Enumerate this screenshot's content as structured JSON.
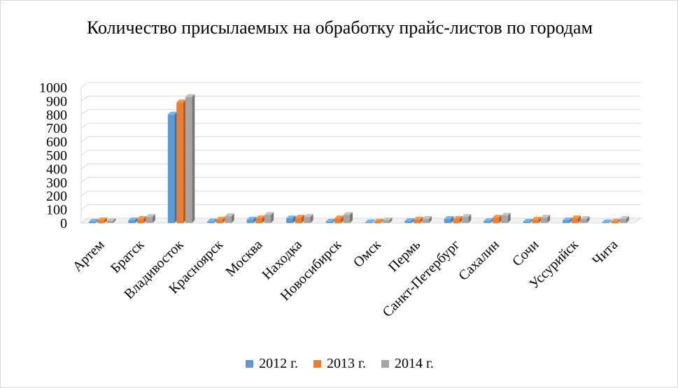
{
  "chart_data": {
    "type": "bar",
    "title": "Количество присылаемых на обработку прайс-листов по городам",
    "xlabel": "",
    "ylabel": "",
    "ylim": [
      0,
      1000
    ],
    "yticks": [
      0,
      100,
      200,
      300,
      400,
      500,
      600,
      700,
      800,
      900,
      1000
    ],
    "grid": true,
    "legend_position": "bottom",
    "categories": [
      "Артем",
      "Братск",
      "Владивосток",
      "Красноярск",
      "Москва",
      "Находка",
      "Новосибирск",
      "Омск",
      "Пермь",
      "Санкт-Петербург",
      "Сахалин",
      "Сочи",
      "Уссурийск",
      "Чита"
    ],
    "series": [
      {
        "name": "2012 г.",
        "color": "#5b9bd5",
        "values": [
          10,
          20,
          800,
          12,
          25,
          35,
          10,
          5,
          15,
          30,
          15,
          10,
          20,
          5
        ]
      },
      {
        "name": "2013 г.",
        "color": "#ed7d31",
        "values": [
          20,
          30,
          890,
          25,
          35,
          40,
          35,
          10,
          25,
          30,
          40,
          25,
          35,
          10
        ]
      },
      {
        "name": "2014 г.",
        "color": "#a5a5a5",
        "values": [
          15,
          45,
          930,
          50,
          60,
          45,
          60,
          20,
          30,
          45,
          55,
          40,
          30,
          30
        ]
      }
    ]
  }
}
